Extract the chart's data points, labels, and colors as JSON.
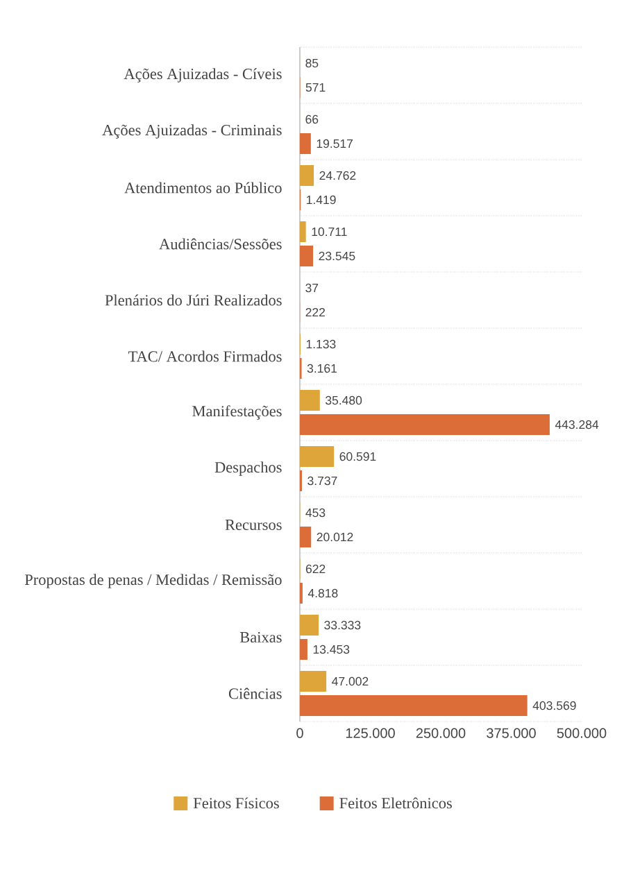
{
  "chart_data": {
    "type": "bar",
    "orientation": "horizontal",
    "categories": [
      "Ações Ajuizadas - Cíveis",
      "Ações Ajuizadas - Criminais",
      "Atendimentos ao Público",
      "Audiências/Sessões",
      "Plenários do Júri Realizados",
      "TAC/ Acordos Firmados",
      "Manifestações",
      "Despachos",
      "Recursos",
      "Propostas de penas / Medidas / Remissão",
      "Baixas",
      "Ciências"
    ],
    "series": [
      {
        "name": "Feitos Físicos",
        "color": "#dea63a",
        "values": [
          85,
          66,
          24762,
          10711,
          37,
          1133,
          35480,
          60591,
          453,
          622,
          33333,
          47002
        ],
        "value_labels": [
          "85",
          "66",
          "24.762",
          "10.711",
          "37",
          "1.133",
          "35.480",
          "60.591",
          "453",
          "622",
          "33.333",
          "47.002"
        ]
      },
      {
        "name": "Feitos Eletrônicos",
        "color": "#dc6c38",
        "values": [
          571,
          19517,
          1419,
          23545,
          222,
          3161,
          443284,
          3737,
          20012,
          4818,
          13453,
          403569
        ],
        "value_labels": [
          "571",
          "19.517",
          "1.419",
          "23.545",
          "222",
          "3.161",
          "443.284",
          "3.737",
          "20.012",
          "4.818",
          "13.453",
          "403.569"
        ]
      }
    ],
    "xlim": [
      0,
      500000
    ],
    "xticks": [
      0,
      {
        "value": 125000,
        "label": "125.000"
      },
      {
        "value": 250000,
        "label": "250.000"
      },
      {
        "value": 375000,
        "label": "375.000"
      },
      {
        "value": 500000,
        "label": "500.000"
      }
    ],
    "grid": "y",
    "legend": "bottom"
  }
}
